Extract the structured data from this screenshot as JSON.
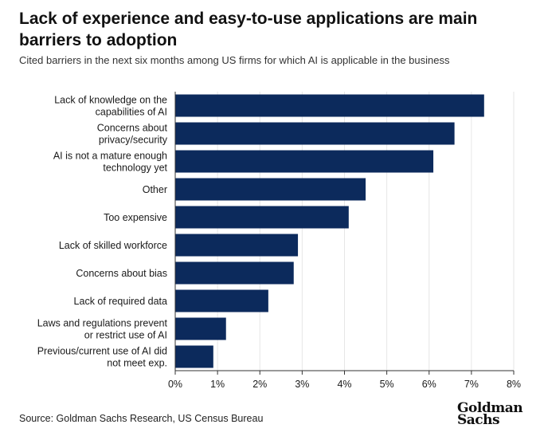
{
  "header": {
    "title": "Lack of experience and easy-to-use applications are main barriers to adoption",
    "subtitle": "Cited barriers in the next six months among US firms for which AI is applicable in the business"
  },
  "footer": {
    "source": "Source: Goldman Sachs Research, US Census Bureau",
    "logo_line1": "Goldman",
    "logo_line2": "Sachs"
  },
  "colors": {
    "bar": "#0c2a5c",
    "grid": "#e6e6e6",
    "axis": "#333333",
    "text": "#1a1a1a"
  },
  "chart_data": {
    "type": "bar",
    "orientation": "horizontal",
    "categories": [
      [
        "Lack of knowledge on the",
        "capabilities of AI"
      ],
      [
        "Concerns about",
        "privacy/security"
      ],
      [
        "AI is not a mature enough",
        "technology yet"
      ],
      [
        "Other"
      ],
      [
        "Too expensive"
      ],
      [
        "Lack of skilled workforce"
      ],
      [
        "Concerns about bias"
      ],
      [
        "Lack of required data"
      ],
      [
        "Laws and regulations prevent",
        "or restrict use of AI"
      ],
      [
        "Previous/current use of AI did",
        "not meet exp."
      ]
    ],
    "values": [
      7.3,
      6.6,
      6.1,
      4.5,
      4.1,
      2.9,
      2.8,
      2.2,
      1.2,
      0.9
    ],
    "xlim": [
      0,
      8
    ],
    "xticks": [
      0,
      1,
      2,
      3,
      4,
      5,
      6,
      7,
      8
    ],
    "xtick_labels": [
      "0%",
      "1%",
      "2%",
      "3%",
      "4%",
      "5%",
      "6%",
      "7%",
      "8%"
    ],
    "xlabel": "",
    "ylabel": "",
    "grid": true
  }
}
